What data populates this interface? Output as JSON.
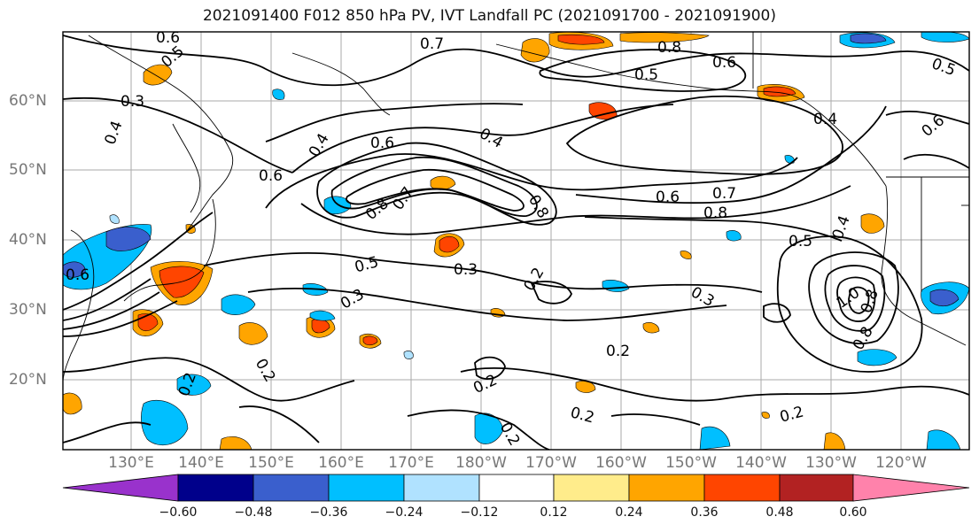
{
  "title": "2021091400 F012 850 hPa PV, IVT Landfall PC (2021091700 - 2021091900)",
  "lat_labels": [
    "60°N",
    "50°N",
    "40°N",
    "30°N",
    "20°N"
  ],
  "lon_labels": [
    "130°E",
    "140°E",
    "150°E",
    "160°E",
    "170°E",
    "180°W",
    "170°W",
    "160°W",
    "150°W",
    "140°W",
    "130°W",
    "120°W"
  ],
  "colorbar": {
    "ticks": [
      "−0.60",
      "−0.48",
      "−0.36",
      "−0.24",
      "−0.12",
      "0.12",
      "0.24",
      "0.36",
      "0.48",
      "0.60"
    ],
    "colors": [
      "#9932cc",
      "#00008b",
      "#3a5fcd",
      "#00bfff",
      "#b0e2ff",
      "#ffffff",
      "#ffec8b",
      "#ffa500",
      "#ff4500",
      "#b22222",
      "#ff82ab"
    ]
  },
  "contour_labels": [
    "0.6",
    "0.5",
    "0.7",
    "0.8",
    "0.5",
    "0.6",
    "0.3",
    "0.4",
    "0.6",
    "0.4",
    "0.6",
    "0.4",
    "0.7",
    "0.8",
    "0.8",
    "0.6",
    "0.7",
    "0.8",
    "0.5",
    "0.4",
    "0.5",
    "0.3",
    "0.3",
    "0.3",
    "0.2",
    "0.2",
    "0.2",
    "0.2",
    "0.2",
    "0.2",
    "0.8",
    "1.0",
    "0.8",
    "0.2",
    "0.2",
    "0.4",
    "0.6",
    "0.5",
    "0.6"
  ]
}
